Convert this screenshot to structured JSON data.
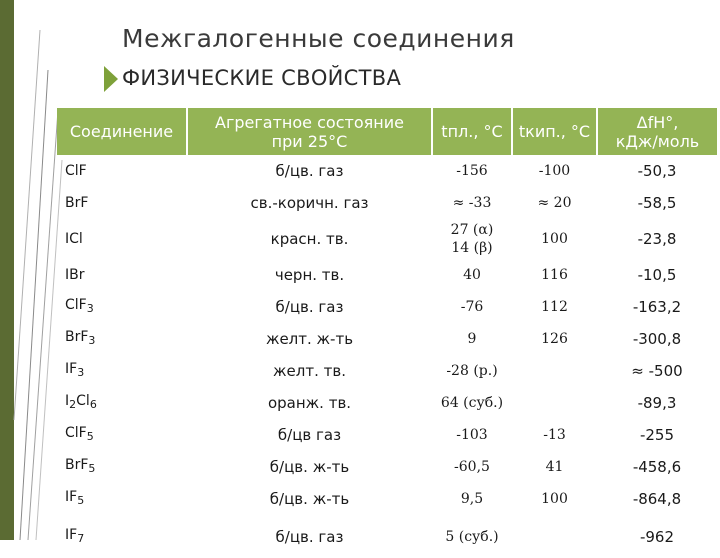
{
  "slide": {
    "title": "Межгалогенные соединения",
    "subtitle": "ФИЗИЧЕСКИЕ СВОЙСТВА"
  },
  "table": {
    "headers": [
      [
        "Соединение"
      ],
      [
        "Агрегатное состояние",
        "при 25°С"
      ],
      [
        "tпл., °С"
      ],
      [
        "tкип., °С"
      ],
      [
        "ΔfH°,",
        "кДж/моль"
      ]
    ],
    "rows": [
      {
        "compound": "ClF",
        "state": "б/цв. газ",
        "tmelt": [
          "-156"
        ],
        "tboil": "-100",
        "dh": "-50,3"
      },
      {
        "compound": "BrF",
        "state": "св.-коричн. газ",
        "tmelt": [
          "≈ -33"
        ],
        "tboil": "≈ 20",
        "dh": "-58,5"
      },
      {
        "compound": "ICl",
        "state": "красн. тв.",
        "tmelt": [
          "27 (α)",
          "14 (β)"
        ],
        "tboil": "100",
        "dh": "-23,8"
      },
      {
        "compound": "IBr",
        "state": "черн. тв.",
        "tmelt": [
          "40"
        ],
        "tboil": "116",
        "dh": "-10,5"
      },
      {
        "compound": "ClF3",
        "state": "б/цв. газ",
        "tmelt": [
          "-76"
        ],
        "tboil": "112",
        "dh": "-163,2"
      },
      {
        "compound": "BrF3",
        "state": "желт. ж-ть",
        "tmelt": [
          "9"
        ],
        "tboil": "126",
        "dh": "-300,8"
      },
      {
        "compound": "IF3",
        "state": "желт. тв.",
        "tmelt": [
          "-28 (р.)"
        ],
        "tboil": "",
        "dh": "≈ -500"
      },
      {
        "compound": "I2Cl6",
        "state": "оранж. тв.",
        "tmelt": [
          "64 (суб.)"
        ],
        "tboil": "",
        "dh": "-89,3"
      },
      {
        "compound": "ClF5",
        "state": "б/цв газ",
        "tmelt": [
          "-103"
        ],
        "tboil": "-13",
        "dh": "-255"
      },
      {
        "compound": "BrF5",
        "state": "б/цв. ж-ть",
        "tmelt": [
          "-60,5"
        ],
        "tboil": "41",
        "dh": "-458,6"
      },
      {
        "compound": "IF5",
        "state": "б/цв. ж-ть",
        "tmelt": [
          "9,5"
        ],
        "tboil": "100",
        "dh": "-864,8"
      },
      {
        "compound": "IF7",
        "state": "б/цв. газ",
        "tmelt": [
          "5 (суб.)"
        ],
        "tboil": "",
        "dh": "-962"
      }
    ]
  },
  "colors": {
    "header_bg": "#94b455",
    "accent_arrow": "#7ea13a",
    "left_band": "#5b6b33"
  }
}
